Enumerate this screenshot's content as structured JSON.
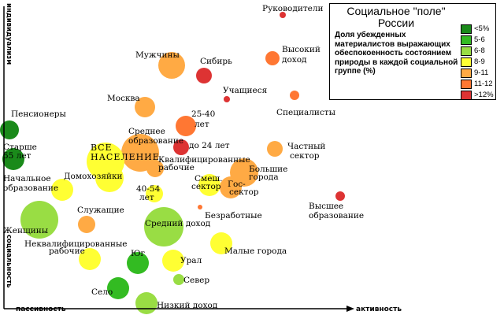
{
  "chart_data": {
    "type": "scatter",
    "title": "Социальное \"поле\" России",
    "legend_description": "Доля убежденных материалистов выражающих обеспокоенность состоянием природы в каждой социальной группе (%)",
    "xlabel_left": "пассивность",
    "xlabel_right": "активность",
    "ylabel_top": "индивидуализм",
    "ylabel_bottom": "социальность",
    "legend": {
      "position": "top-right",
      "items": [
        {
          "label": "<5%",
          "color": "#1a8a1a"
        },
        {
          "label": "5-6",
          "color": "#33bb22"
        },
        {
          "label": "6-8",
          "color": "#99dd44"
        },
        {
          "label": "8-9",
          "color": "#ffff33"
        },
        {
          "label": "9-11",
          "color": "#ffaa44"
        },
        {
          "label": "11-12",
          "color": "#ff7733"
        },
        {
          "label": ">12%",
          "color": "#dd3333"
        }
      ]
    },
    "points": [
      {
        "label": "Руководители",
        "category": ">12%"
      },
      {
        "label": "Мужчины",
        "category": "9-11"
      },
      {
        "label": "Сибирь",
        "category": ">12%"
      },
      {
        "label": "Высокий доход",
        "category": "11-12"
      },
      {
        "label": "Учащиеся",
        "category": ">12%"
      },
      {
        "label": "Москва",
        "category": "9-11"
      },
      {
        "label": "Специалисты",
        "category": "11-12"
      },
      {
        "label": "Пенсионеры",
        "category": "<5%"
      },
      {
        "label": "25-40 лет",
        "category": "11-12"
      },
      {
        "label": "Среднее образование",
        "category": "9-11"
      },
      {
        "label": "до 24 лет",
        "category": ">12%"
      },
      {
        "label": "Старше 55 лет",
        "category": "<5%"
      },
      {
        "label": "ВСЕ НАСЕЛЕНИЕ",
        "category": "8-9"
      },
      {
        "label": "Частный сектор",
        "category": "9-11"
      },
      {
        "label": "Квалифицированные рабочие",
        "category": "9-11"
      },
      {
        "label": "Домохозяйки",
        "category": "8-9"
      },
      {
        "label": "Большие города",
        "category": "9-11"
      },
      {
        "label": "Начальное образование",
        "category": "8-9"
      },
      {
        "label": "Смеш. сектор",
        "category": "8-9"
      },
      {
        "label": "Гос-сектор",
        "category": "9-11"
      },
      {
        "label": "40-54 лет",
        "category": "8-9"
      },
      {
        "label": "Высшее образование",
        "category": ">12%"
      },
      {
        "label": "Служащие",
        "category": "9-11"
      },
      {
        "label": "Безработные",
        "category": "11-12"
      },
      {
        "label": "Женщины",
        "category": "6-8"
      },
      {
        "label": "Средний доход",
        "category": "6-8"
      },
      {
        "label": "Неквалифицированные рабочие",
        "category": "8-9"
      },
      {
        "label": "Малые города",
        "category": "8-9"
      },
      {
        "label": "Юг",
        "category": "5-6"
      },
      {
        "label": "Урал",
        "category": "8-9"
      },
      {
        "label": "Север",
        "category": "6-8"
      },
      {
        "label": "Село",
        "category": "5-6"
      },
      {
        "label": "Низкий доход",
        "category": "6-8"
      }
    ]
  }
}
